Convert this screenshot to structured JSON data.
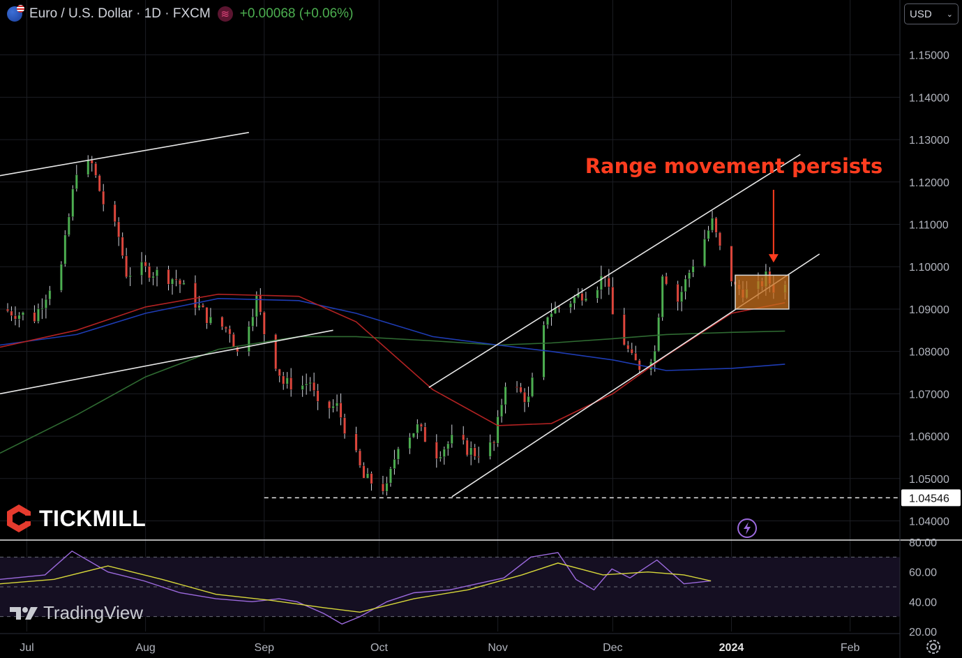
{
  "header": {
    "title": "Euro / U.S. Dollar · 1D · FXCM",
    "change": "+0.00068 (+0.06%)",
    "indicator_icon": "wave-icon",
    "flag_icon": "eu-us-flag-icon"
  },
  "currency_select": {
    "value": "USD"
  },
  "brand": {
    "name": "TICKMILL",
    "logo_icon": "tickmill-hexagon-icon"
  },
  "watermark": {
    "text": "TradingView",
    "logo_icon": "tradingview-logo-icon"
  },
  "colors": {
    "up": "#4caf50",
    "down": "#e0463c",
    "ma_red": "#b22222",
    "ma_blue": "#1e3cb4",
    "ma_green": "#2f6b32",
    "rsi": "#9c6ade",
    "rsi_ma": "#d8d83a",
    "annotation": "#ff3d1f",
    "range_box": "#c8701e"
  },
  "chart_data": {
    "type": "candlestick",
    "price_axis": {
      "ticks": [
        "1.15000",
        "1.14000",
        "1.13000",
        "1.12000",
        "1.11000",
        "1.10000",
        "1.09000",
        "1.08000",
        "1.07000",
        "1.06000",
        "1.05000",
        "1.04000"
      ],
      "ylim": [
        1.0358,
        1.1567
      ]
    },
    "price_label": "1.04546",
    "support_level": 1.04546,
    "x_axis": {
      "labels": [
        {
          "text": "Jul",
          "date": "2023-07-01"
        },
        {
          "text": "Aug",
          "date": "2023-08-01"
        },
        {
          "text": "Sep",
          "date": "2023-09-01"
        },
        {
          "text": "Oct",
          "date": "2023-10-01"
        },
        {
          "text": "Nov",
          "date": "2023-11-01"
        },
        {
          "text": "Dec",
          "date": "2023-12-01"
        },
        {
          "text": "2024",
          "date": "2024-01-01",
          "bold": true
        },
        {
          "text": "Feb",
          "date": "2024-02-01"
        }
      ]
    },
    "date_range": [
      "2023-06-24",
      "2024-02-14"
    ],
    "path": [
      [
        "2023-06-24",
        1.09
      ],
      [
        "2023-07-03",
        1.088
      ],
      [
        "2023-07-07",
        1.0955
      ],
      [
        "2023-07-10",
        1.1
      ],
      [
        "2023-07-14",
        1.1232
      ],
      [
        "2023-07-18",
        1.124
      ],
      [
        "2023-07-21",
        1.115
      ],
      [
        "2023-07-25",
        1.107
      ],
      [
        "2023-07-27",
        1.0985
      ],
      [
        "2023-07-31",
        1.0995
      ],
      [
        "2023-08-04",
        1.0985
      ],
      [
        "2023-08-09",
        1.097
      ],
      [
        "2023-08-14",
        1.0915
      ],
      [
        "2023-08-18",
        1.087
      ],
      [
        "2023-08-23",
        1.085
      ],
      [
        "2023-08-25",
        1.0795
      ],
      [
        "2023-08-30",
        1.0925
      ],
      [
        "2023-09-01",
        1.0845
      ],
      [
        "2023-09-06",
        1.0725
      ],
      [
        "2023-09-11",
        1.072
      ],
      [
        "2023-09-13",
        1.073
      ],
      [
        "2023-09-15",
        1.0665
      ],
      [
        "2023-09-20",
        1.067
      ],
      [
        "2023-09-27",
        1.05
      ],
      [
        "2023-10-03",
        1.0475
      ],
      [
        "2023-10-06",
        1.0585
      ],
      [
        "2023-10-11",
        1.062
      ],
      [
        "2023-10-16",
        1.056
      ],
      [
        "2023-10-20",
        1.059
      ],
      [
        "2023-10-26",
        1.056
      ],
      [
        "2023-10-31",
        1.058
      ],
      [
        "2023-11-03",
        1.073
      ],
      [
        "2023-11-09",
        1.0685
      ],
      [
        "2023-11-14",
        1.089
      ],
      [
        "2023-11-20",
        1.092
      ],
      [
        "2023-11-27",
        1.096
      ],
      [
        "2023-11-29",
        1.0985
      ],
      [
        "2023-12-01",
        1.0885
      ],
      [
        "2023-12-06",
        1.078
      ],
      [
        "2023-12-08",
        1.0765
      ],
      [
        "2023-12-12",
        1.08
      ],
      [
        "2023-12-14",
        1.099
      ],
      [
        "2023-12-18",
        1.092
      ],
      [
        "2023-12-22",
        1.101
      ],
      [
        "2023-12-27",
        1.1105
      ],
      [
        "2023-12-29",
        1.104
      ],
      [
        "2024-01-02",
        1.095
      ],
      [
        "2024-01-05",
        1.094
      ],
      [
        "2024-01-08",
        1.095
      ],
      [
        "2024-01-10",
        1.0975
      ],
      [
        "2024-01-12",
        1.095
      ],
      [
        "2024-01-15",
        1.0955
      ]
    ],
    "moving_averages": {
      "red": [
        [
          "2023-06-24",
          1.081
        ],
        [
          "2023-07-14",
          1.085
        ],
        [
          "2023-08-01",
          1.0905
        ],
        [
          "2023-08-20",
          1.0935
        ],
        [
          "2023-09-10",
          1.093
        ],
        [
          "2023-09-25",
          1.087
        ],
        [
          "2023-10-15",
          1.071
        ],
        [
          "2023-11-01",
          1.0625
        ],
        [
          "2023-11-15",
          1.063
        ],
        [
          "2023-12-01",
          1.07
        ],
        [
          "2023-12-15",
          1.079
        ],
        [
          "2024-01-01",
          1.089
        ],
        [
          "2024-01-15",
          1.0915
        ]
      ],
      "blue": [
        [
          "2023-06-24",
          1.0815
        ],
        [
          "2023-07-14",
          1.084
        ],
        [
          "2023-08-01",
          1.089
        ],
        [
          "2023-08-20",
          1.0925
        ],
        [
          "2023-09-10",
          1.092
        ],
        [
          "2023-09-25",
          1.089
        ],
        [
          "2023-10-15",
          1.0835
        ],
        [
          "2023-11-01",
          1.0815
        ],
        [
          "2023-11-15",
          1.08
        ],
        [
          "2023-12-01",
          1.078
        ],
        [
          "2023-12-15",
          1.0755
        ],
        [
          "2024-01-01",
          1.076
        ],
        [
          "2024-01-15",
          1.077
        ]
      ],
      "green": [
        [
          "2023-06-24",
          1.056
        ],
        [
          "2023-07-14",
          1.065
        ],
        [
          "2023-08-01",
          1.074
        ],
        [
          "2023-08-20",
          1.0805
        ],
        [
          "2023-09-10",
          1.0835
        ],
        [
          "2023-09-25",
          1.0835
        ],
        [
          "2023-10-15",
          1.0825
        ],
        [
          "2023-11-01",
          1.0815
        ],
        [
          "2023-11-15",
          1.082
        ],
        [
          "2023-12-01",
          1.083
        ],
        [
          "2023-12-15",
          1.084
        ],
        [
          "2024-01-01",
          1.0845
        ],
        [
          "2024-01-15",
          1.0848
        ]
      ]
    },
    "trendlines": [
      {
        "from": [
          "2023-06-24",
          1.1215
        ],
        "to": [
          "2023-08-28",
          1.1317
        ]
      },
      {
        "from": [
          "2023-06-24",
          1.07
        ],
        "to": [
          "2023-09-19",
          1.085
        ]
      },
      {
        "from": [
          "2023-10-14",
          1.0715
        ],
        "to": [
          "2024-01-19",
          1.1265
        ]
      },
      {
        "from": [
          "2023-10-20",
          1.0457
        ],
        "to": [
          "2024-01-24",
          1.103
        ]
      }
    ],
    "range_box": {
      "from": "2024-01-02",
      "to": "2024-01-16",
      "top": 1.098,
      "bottom": 1.09
    },
    "annotation": {
      "text": "Range movement persists",
      "points_to": [
        "2024-01-12",
        1.099
      ]
    },
    "rsi": {
      "ticks": [
        "80.00",
        "60.00",
        "40.00",
        "20.00"
      ],
      "ylim": [
        20,
        80
      ],
      "levels": [
        70,
        50,
        30
      ],
      "values": [
        [
          0,
          55
        ],
        [
          0.05,
          58
        ],
        [
          0.08,
          74
        ],
        [
          0.12,
          60
        ],
        [
          0.16,
          54
        ],
        [
          0.2,
          46
        ],
        [
          0.24,
          42
        ],
        [
          0.28,
          40
        ],
        [
          0.31,
          42
        ],
        [
          0.33,
          40
        ],
        [
          0.36,
          32
        ],
        [
          0.38,
          25
        ],
        [
          0.4,
          30
        ],
        [
          0.43,
          40
        ],
        [
          0.46,
          46
        ],
        [
          0.5,
          48
        ],
        [
          0.53,
          52
        ],
        [
          0.56,
          56
        ],
        [
          0.59,
          70
        ],
        [
          0.62,
          73
        ],
        [
          0.64,
          55
        ],
        [
          0.66,
          48
        ],
        [
          0.68,
          62
        ],
        [
          0.7,
          56
        ],
        [
          0.73,
          68
        ],
        [
          0.76,
          52
        ],
        [
          0.79,
          54
        ]
      ],
      "ma": [
        [
          0,
          52
        ],
        [
          0.06,
          55
        ],
        [
          0.12,
          64
        ],
        [
          0.18,
          55
        ],
        [
          0.24,
          45
        ],
        [
          0.3,
          41
        ],
        [
          0.36,
          36
        ],
        [
          0.4,
          33
        ],
        [
          0.46,
          42
        ],
        [
          0.52,
          48
        ],
        [
          0.58,
          58
        ],
        [
          0.62,
          66
        ],
        [
          0.67,
          58
        ],
        [
          0.72,
          60
        ],
        [
          0.76,
          58
        ],
        [
          0.79,
          54
        ]
      ]
    }
  }
}
